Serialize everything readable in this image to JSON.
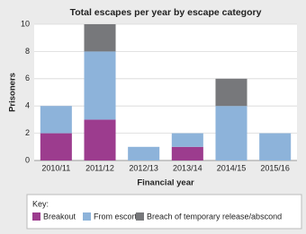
{
  "chart_data": {
    "type": "stacked_bar",
    "title": "Total escapes per year by escape category",
    "x_label": "Financial year",
    "y_label": "Prisoners",
    "categories": [
      "2010/11",
      "2011/12",
      "2012/13",
      "2013/14",
      "2014/15",
      "2015/16"
    ],
    "series": [
      {
        "name": "Breakout",
        "color": "#9c3c8e",
        "values": [
          2,
          3,
          0,
          1,
          0,
          0
        ]
      },
      {
        "name": "From escort",
        "color": "#8db3da",
        "values": [
          2,
          5,
          1,
          1,
          4,
          2
        ]
      },
      {
        "name": "Breach of temporary release/abscond",
        "color": "#77787b",
        "values": [
          0,
          2,
          0,
          0,
          2,
          0
        ]
      }
    ],
    "ylim": [
      0,
      10
    ],
    "yticks": [
      0,
      2,
      4,
      6,
      8,
      10
    ],
    "grid": true,
    "legend_title": "Key:",
    "legend_position": "bottom"
  }
}
